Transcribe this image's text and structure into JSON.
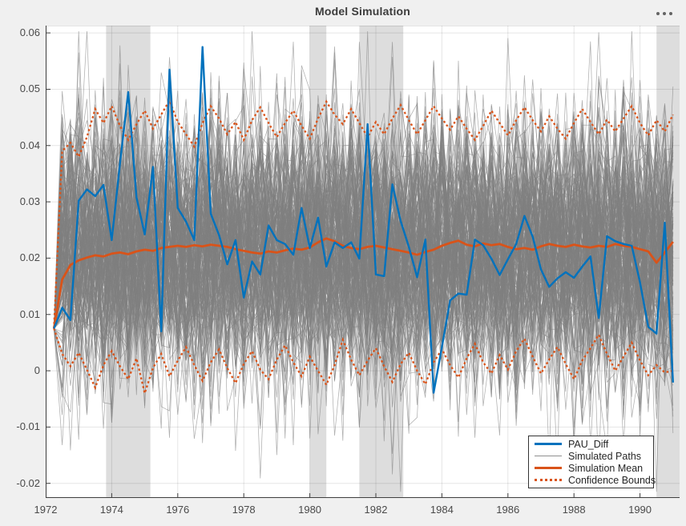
{
  "figure": {
    "title": "Model Simulation",
    "toolbar": {
      "more_options_icon": "ellipsis-icon"
    }
  },
  "colors": {
    "figure_background": "#F0F0F0",
    "plot_background": "#FFFFFF",
    "pau_blue": "#0072BD",
    "sim_orange": "#D95319",
    "path_gray": "#808080",
    "recession_band": "#DDDDDD",
    "grid": "rgba(0,0,0,0.10)",
    "axis": "#3F3F3F",
    "tick_label": "#4A4A4A"
  },
  "legend": {
    "position": "southeast",
    "entries": [
      {
        "label": "PAU_Diff",
        "series": "pau_diff",
        "line_color": "#0072BD",
        "line_style": "solid",
        "line_weight": 3
      },
      {
        "label": "Simulated Paths",
        "series": "simulated_paths",
        "line_color": "#909090",
        "line_style": "solid",
        "line_weight": 1
      },
      {
        "label": "Simulation Mean",
        "series": "simulation_mean",
        "line_color": "#D95319",
        "line_style": "solid",
        "line_weight": 3
      },
      {
        "label": "Confidence Bounds",
        "series": "confidence_bounds",
        "line_color": "#D95319",
        "line_style": "dotted",
        "line_weight": 3
      }
    ]
  },
  "chart_data": {
    "type": "line",
    "title": "Model Simulation",
    "xlabel": "",
    "ylabel": "",
    "x_start": 1972.25,
    "x_step": 0.25,
    "n_points": 76,
    "xlim": [
      1972,
      1991.2
    ],
    "ylim": [
      -0.0226,
      0.0613
    ],
    "xticks": [
      1972,
      1974,
      1976,
      1978,
      1980,
      1982,
      1984,
      1986,
      1988,
      1990
    ],
    "xtick_labels": [
      "1972",
      "1974",
      "1976",
      "1978",
      "1980",
      "1982",
      "1984",
      "1986",
      "1988",
      "1990"
    ],
    "yticks": [
      0.06,
      0.05,
      0.04,
      0.03,
      0.02,
      0.01,
      0,
      -0.01,
      -0.02
    ],
    "ytick_labels": [
      "0.06",
      "0.05",
      "0.04",
      "0.03",
      "0.02",
      "0.01",
      "0",
      "-0.01",
      "-0.02"
    ],
    "grid": true,
    "legend_position": "southeast",
    "recession_bands": [
      [
        1973.83,
        1975.17
      ],
      [
        1980.0,
        1980.5
      ],
      [
        1981.5,
        1982.83
      ],
      [
        1990.5,
        1991.2
      ]
    ],
    "series": [
      {
        "name": "PAU_Diff",
        "values": [
          0.0075,
          0.0112,
          0.009,
          0.0302,
          0.0322,
          0.031,
          0.033,
          0.0232,
          0.0368,
          0.0495,
          0.0308,
          0.0242,
          0.0362,
          0.007,
          0.0535,
          0.0289,
          0.0265,
          0.0232,
          0.0575,
          0.0279,
          0.0241,
          0.0189,
          0.0232,
          0.013,
          0.0194,
          0.0171,
          0.0258,
          0.0232,
          0.0225,
          0.0206,
          0.0289,
          0.0218,
          0.0272,
          0.0185,
          0.0228,
          0.0218,
          0.0228,
          0.0199,
          0.0438,
          0.0171,
          0.0168,
          0.0331,
          0.0266,
          0.022,
          0.0166,
          0.0233,
          -0.0039,
          0.0042,
          0.0125,
          0.0137,
          0.0135,
          0.0233,
          0.0223,
          0.0199,
          0.017,
          0.0198,
          0.0225,
          0.0275,
          0.0238,
          0.018,
          0.0149,
          0.0164,
          0.0175,
          0.0165,
          0.0185,
          0.0203,
          0.0094,
          0.0239,
          0.023,
          0.0225,
          0.0222,
          0.0157,
          0.0078,
          0.0066,
          0.0263,
          -0.0021
        ]
      },
      {
        "name": "Simulation Mean",
        "values": [
          0.0075,
          0.0162,
          0.0188,
          0.0196,
          0.0201,
          0.0205,
          0.0203,
          0.0208,
          0.021,
          0.0207,
          0.0212,
          0.0215,
          0.0213,
          0.0218,
          0.022,
          0.0222,
          0.022,
          0.0223,
          0.0221,
          0.0224,
          0.0222,
          0.022,
          0.0216,
          0.0213,
          0.021,
          0.0208,
          0.0212,
          0.021,
          0.0214,
          0.0217,
          0.0215,
          0.0219,
          0.0228,
          0.0235,
          0.023,
          0.0222,
          0.0218,
          0.0216,
          0.022,
          0.0222,
          0.0219,
          0.0216,
          0.0213,
          0.021,
          0.0206,
          0.0211,
          0.0215,
          0.0222,
          0.0227,
          0.0231,
          0.0224,
          0.0221,
          0.0226,
          0.0223,
          0.0225,
          0.022,
          0.0216,
          0.0218,
          0.0215,
          0.0221,
          0.0225,
          0.0222,
          0.022,
          0.0224,
          0.0221,
          0.0219,
          0.0222,
          0.022,
          0.0225,
          0.0222,
          0.022,
          0.0216,
          0.0212,
          0.0192,
          0.021,
          0.0229
        ]
      },
      {
        "name": "Confidence Bound Upper",
        "values": [
          0.0075,
          0.039,
          0.0405,
          0.038,
          0.0415,
          0.0465,
          0.044,
          0.047,
          0.0435,
          0.041,
          0.0438,
          0.0462,
          0.043,
          0.0455,
          0.048,
          0.0442,
          0.042,
          0.0398,
          0.044,
          0.047,
          0.0448,
          0.042,
          0.0442,
          0.041,
          0.0445,
          0.0468,
          0.044,
          0.0415,
          0.044,
          0.0462,
          0.0435,
          0.0412,
          0.0448,
          0.0478,
          0.0455,
          0.0438,
          0.0465,
          0.044,
          0.0415,
          0.0442,
          0.042,
          0.0448,
          0.0472,
          0.0445,
          0.042,
          0.0445,
          0.047,
          0.0448,
          0.0428,
          0.0452,
          0.043,
          0.041,
          0.0435,
          0.0462,
          0.044,
          0.0418,
          0.0445,
          0.0468,
          0.0445,
          0.0425,
          0.0452,
          0.043,
          0.0412,
          0.044,
          0.0465,
          0.0442,
          0.042,
          0.0446,
          0.0425,
          0.0448,
          0.047,
          0.044,
          0.0418,
          0.0445,
          0.0425,
          0.0455
        ]
      },
      {
        "name": "Confidence Bound Lower",
        "values": [
          0.0075,
          0.003,
          0.0008,
          0.0032,
          0.0002,
          -0.003,
          0.001,
          0.0035,
          0.0008,
          -0.0015,
          0.0022,
          -0.004,
          0.0005,
          0.003,
          -0.001,
          0.0018,
          0.0042,
          0.001,
          -0.0018,
          0.0015,
          0.0038,
          0.0005,
          -0.0022,
          0.0012,
          0.0035,
          0.0002,
          -0.0015,
          0.002,
          0.0045,
          0.0015,
          -0.001,
          0.0025,
          0.0,
          -0.0025,
          0.001,
          0.0055,
          0.002,
          -0.0008,
          0.0018,
          0.004,
          0.0008,
          -0.002,
          0.0012,
          0.0032,
          0.0,
          -0.0024,
          0.0015,
          0.0038,
          0.001,
          -0.0012,
          0.0022,
          0.0048,
          0.0015,
          -0.0005,
          0.0028,
          0.0002,
          0.0035,
          0.0057,
          0.0025,
          -0.0005,
          0.002,
          0.0042,
          0.0012,
          -0.0015,
          0.0018,
          0.004,
          0.0064,
          0.003,
          0.0,
          0.0025,
          0.005,
          0.0018,
          -0.0008,
          0.001,
          -0.0003,
          0.0
        ]
      }
    ],
    "simulated_paths": {
      "count": 180,
      "start_value": 0.0075,
      "mean": 0.0213,
      "std": 0.0113,
      "clip": [
        -0.0215,
        0.0603
      ],
      "seed": 77
    }
  }
}
